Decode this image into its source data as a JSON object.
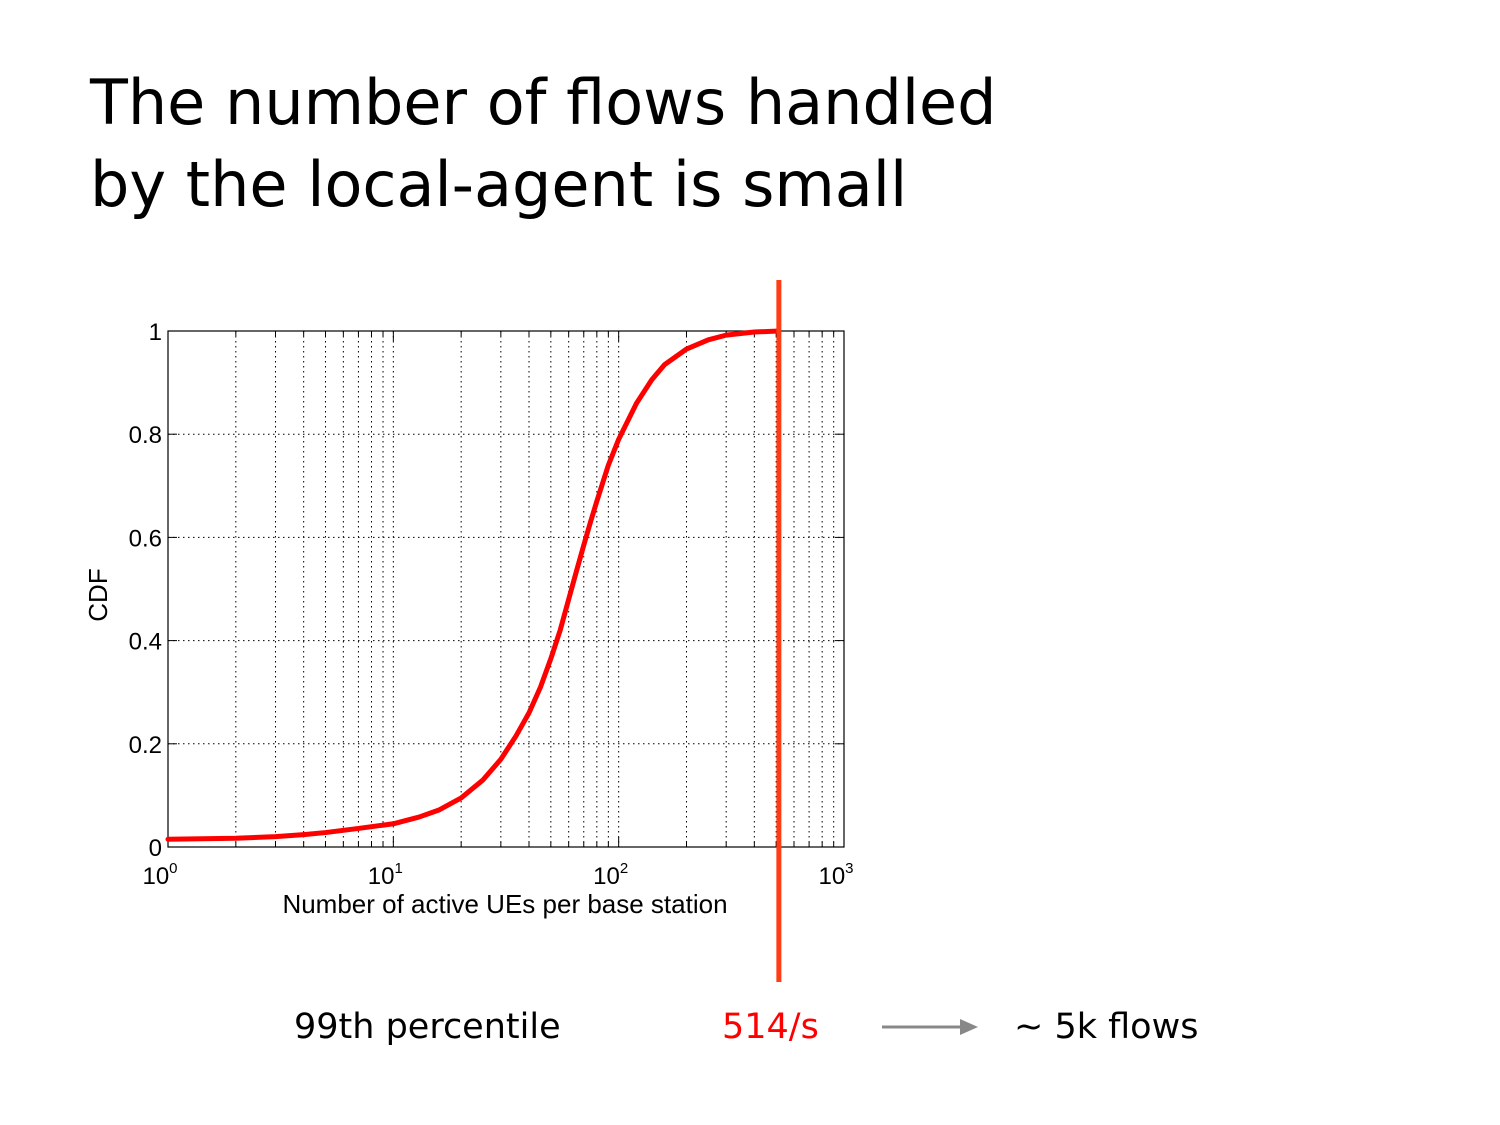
{
  "slide": {
    "title_line1": "The number of flows handled",
    "title_line2": "by the local-agent is small"
  },
  "chart_data": {
    "type": "line",
    "x_scale": "log",
    "xlim": [
      1,
      1000
    ],
    "ylim": [
      0,
      1
    ],
    "xlabel": "Number of active UEs per base station",
    "ylabel": "CDF",
    "x_ticks": [
      {
        "value": 1,
        "base": "10",
        "exp": "0"
      },
      {
        "value": 10,
        "base": "10",
        "exp": "1"
      },
      {
        "value": 100,
        "base": "10",
        "exp": "2"
      },
      {
        "value": 1000,
        "base": "10",
        "exp": "3"
      }
    ],
    "y_ticks": [
      {
        "value": 0,
        "label": "0"
      },
      {
        "value": 0.2,
        "label": "0.2"
      },
      {
        "value": 0.4,
        "label": "0.4"
      },
      {
        "value": 0.6,
        "label": "0.6"
      },
      {
        "value": 0.8,
        "label": "0.8"
      },
      {
        "value": 1,
        "label": "1"
      }
    ],
    "grid": true,
    "series": [
      {
        "color": "#ff0000",
        "x": [
          1,
          2,
          3,
          4,
          5,
          7,
          10,
          13,
          16,
          20,
          25,
          30,
          35,
          40,
          45,
          50,
          55,
          60,
          65,
          70,
          75,
          80,
          90,
          100,
          120,
          140,
          160,
          200,
          250,
          300,
          400,
          514
        ],
        "y": [
          0.015,
          0.017,
          0.02,
          0.024,
          0.028,
          0.036,
          0.045,
          0.058,
          0.072,
          0.095,
          0.13,
          0.17,
          0.215,
          0.26,
          0.31,
          0.365,
          0.42,
          0.48,
          0.535,
          0.585,
          0.63,
          0.67,
          0.74,
          0.79,
          0.86,
          0.905,
          0.935,
          0.965,
          0.983,
          0.992,
          0.998,
          1.0
        ]
      }
    ],
    "marker": {
      "x": 514,
      "color": "#ff3d14",
      "label": "514/s"
    }
  },
  "footer": {
    "percentile_label": "99th percentile",
    "value_label": "514/s",
    "result_label": "~ 5k flows",
    "value_color": "#ff0000",
    "arrow_color": "#888888"
  }
}
